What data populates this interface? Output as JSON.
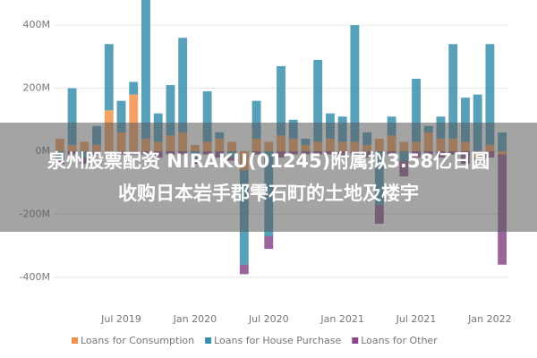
{
  "chart_data": {
    "type": "stacked_bar",
    "categories": [
      null,
      null,
      null,
      null,
      null,
      "Jul 2019",
      null,
      null,
      null,
      null,
      null,
      "Jan 2020",
      null,
      null,
      null,
      null,
      null,
      "Jul 2020",
      null,
      null,
      null,
      null,
      null,
      "Jan 2021",
      null,
      null,
      null,
      null,
      null,
      "Jul 2021",
      null,
      null,
      null,
      null,
      null,
      "Jan 2022",
      null
    ],
    "series": [
      {
        "name": "Loans for Consumption",
        "color": "#f0924a",
        "values": [
          40,
          20,
          30,
          20,
          130,
          60,
          180,
          40,
          30,
          50,
          60,
          20,
          30,
          40,
          30,
          -60,
          40,
          30,
          50,
          40,
          20,
          30,
          40,
          30,
          30,
          20,
          40,
          50,
          30,
          30,
          60,
          40,
          40,
          30,
          -20,
          20,
          -10
        ]
      },
      {
        "name": "Loans for House Purchase",
        "color": "#3a8fae",
        "values": [
          -30,
          180,
          -20,
          60,
          210,
          100,
          40,
          470,
          90,
          160,
          300,
          -30,
          160,
          20,
          -20,
          -300,
          120,
          -270,
          220,
          60,
          20,
          260,
          80,
          80,
          370,
          40,
          -170,
          60,
          -30,
          200,
          20,
          70,
          300,
          140,
          180,
          320,
          60
        ]
      },
      {
        "name": "Loans for Other",
        "color": "#8a4a8a",
        "values": [
          -10,
          -10,
          -20,
          -10,
          0,
          -10,
          -10,
          -10,
          -20,
          -10,
          -10,
          -10,
          -10,
          -20,
          -10,
          -30,
          -10,
          -40,
          -20,
          -10,
          -10,
          -10,
          -10,
          -20,
          -10,
          -20,
          -60,
          -10,
          -50,
          -20,
          -10,
          -20,
          -10,
          -40,
          -10,
          -20,
          -350
        ]
      }
    ],
    "ylim": [
      -500,
      480
    ],
    "yticks": [
      {
        "value": -400,
        "label": "-400M"
      },
      {
        "value": -200,
        "label": "-200M"
      },
      {
        "value": 0,
        "label": "0M"
      },
      {
        "value": 200,
        "label": "200M"
      },
      {
        "value": 400,
        "label": "400M"
      }
    ],
    "grid": true
  },
  "banner": "泉州股票配资 NIRAKU(01245)附属拟3.58亿日圆收购日本岩手郡雫石町的土地及楼宇"
}
